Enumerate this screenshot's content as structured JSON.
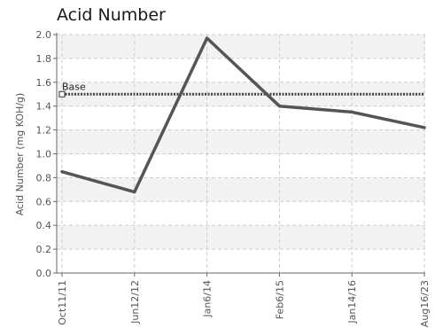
{
  "chart_data": {
    "type": "line",
    "title": "Acid Number",
    "ylabel": "Acid Number (mg KOH/g)",
    "xlabel": "",
    "categories": [
      "Oct11/11",
      "Jun12/12",
      "Jan6/14",
      "Feb6/15",
      "Jan14/16",
      "Aug16/23"
    ],
    "series": [
      {
        "values": [
          0.85,
          0.68,
          1.97,
          1.4,
          1.35,
          1.22
        ],
        "color": "#555555"
      }
    ],
    "baseline": {
      "label": "Base",
      "value": 1.5,
      "color": "#444444"
    },
    "ylim": [
      0.0,
      2.0
    ],
    "yticks": [
      "0.0",
      "0.2",
      "0.4",
      "0.6",
      "0.8",
      "1.0",
      "1.2",
      "1.4",
      "1.6",
      "1.8",
      "2.0"
    ],
    "grid": true,
    "colors": {
      "band": "#f2f2f2",
      "grid": "#cccccc",
      "axis": "#666666"
    }
  }
}
